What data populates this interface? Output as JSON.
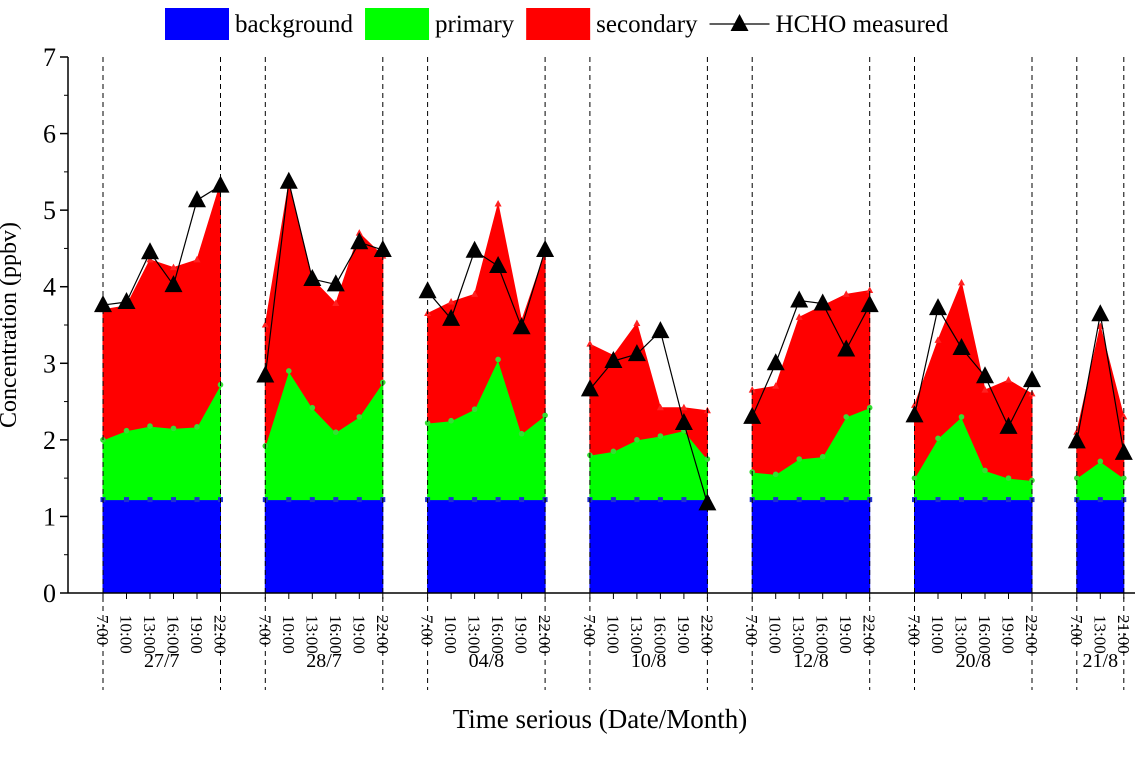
{
  "chart_data": {
    "type": "area",
    "y_label": "Concentration (ppbv)",
    "x_label": "Time serious (Date/Month)",
    "ylim": [
      0,
      7
    ],
    "yticks": [
      0,
      1,
      2,
      3,
      4,
      5,
      6,
      7
    ],
    "groups": [
      {
        "name": "27/7",
        "categories": [
          "7:00",
          "10:00",
          "13:00",
          "16:00",
          "19:00",
          "22:00"
        ]
      },
      {
        "name": "28/7",
        "categories": [
          "7:00",
          "10:00",
          "13:00",
          "16:00",
          "19:00",
          "22:00"
        ]
      },
      {
        "name": "04/8",
        "categories": [
          "7:00",
          "10:00",
          "13:00",
          "16:00",
          "19:00",
          "22:00"
        ]
      },
      {
        "name": "10/8",
        "categories": [
          "7:00",
          "10:00",
          "13:00",
          "16:00",
          "19:00",
          "22:00"
        ]
      },
      {
        "name": "12/8",
        "categories": [
          "7:00",
          "10:00",
          "13:00",
          "16:00",
          "19:00",
          "22:00"
        ]
      },
      {
        "name": "20/8",
        "categories": [
          "7:00",
          "10:00",
          "13:00",
          "16:00",
          "19:00",
          "22:00"
        ]
      },
      {
        "name": "21/8",
        "categories": [
          "7:00",
          "13:00",
          "21:00"
        ]
      }
    ],
    "series": [
      {
        "name": "background",
        "color": "#0000ff",
        "values": [
          1.22,
          1.22,
          1.22,
          1.22,
          1.22,
          1.22,
          1.22,
          1.22,
          1.22,
          1.22,
          1.22,
          1.22,
          1.22,
          1.22,
          1.22,
          1.22,
          1.22,
          1.22,
          1.22,
          1.22,
          1.22,
          1.22,
          1.22,
          1.22,
          1.22,
          1.22,
          1.22,
          1.22,
          1.22,
          1.22,
          1.22,
          1.22,
          1.22,
          1.22,
          1.22,
          1.22,
          1.22,
          1.22,
          1.22
        ]
      },
      {
        "name": "primary",
        "color": "#00ff00",
        "values": [
          0.78,
          0.9,
          0.96,
          0.93,
          0.95,
          1.5,
          0.7,
          1.68,
          1.2,
          0.88,
          1.08,
          1.53,
          1.0,
          1.03,
          1.18,
          1.83,
          0.86,
          1.1,
          0.58,
          0.63,
          0.78,
          0.83,
          0.9,
          0.53,
          0.36,
          0.33,
          0.53,
          0.56,
          1.08,
          1.2,
          0.28,
          0.8,
          1.08,
          0.38,
          0.28,
          0.25,
          0.28,
          0.5,
          0.28
        ]
      },
      {
        "name": "secondary",
        "color": "#ff0000",
        "values": [
          1.7,
          1.63,
          2.17,
          2.1,
          2.18,
          2.63,
          1.58,
          2.45,
          1.68,
          1.68,
          2.4,
          1.65,
          1.43,
          1.55,
          1.5,
          2.03,
          1.47,
          2.13,
          1.45,
          1.25,
          1.52,
          0.37,
          0.3,
          0.63,
          1.07,
          1.15,
          1.85,
          1.97,
          1.6,
          1.53,
          0.95,
          1.28,
          1.75,
          1.05,
          1.28,
          1.13,
          0.6,
          1.76,
          0.8
        ]
      },
      {
        "name": "HCHO measured",
        "color": "#000000",
        "type": "line",
        "values": [
          3.76,
          3.8,
          4.45,
          4.02,
          5.13,
          5.32,
          2.84,
          5.37,
          4.1,
          4.03,
          4.58,
          4.48,
          3.94,
          3.58,
          4.47,
          4.27,
          3.47,
          4.48,
          2.66,
          3.03,
          3.12,
          3.42,
          2.22,
          1.17,
          2.3,
          3.0,
          3.82,
          3.78,
          3.18,
          3.76,
          2.32,
          3.72,
          3.2,
          2.83,
          2.17,
          2.78,
          1.98,
          3.64,
          1.83
        ]
      }
    ]
  }
}
